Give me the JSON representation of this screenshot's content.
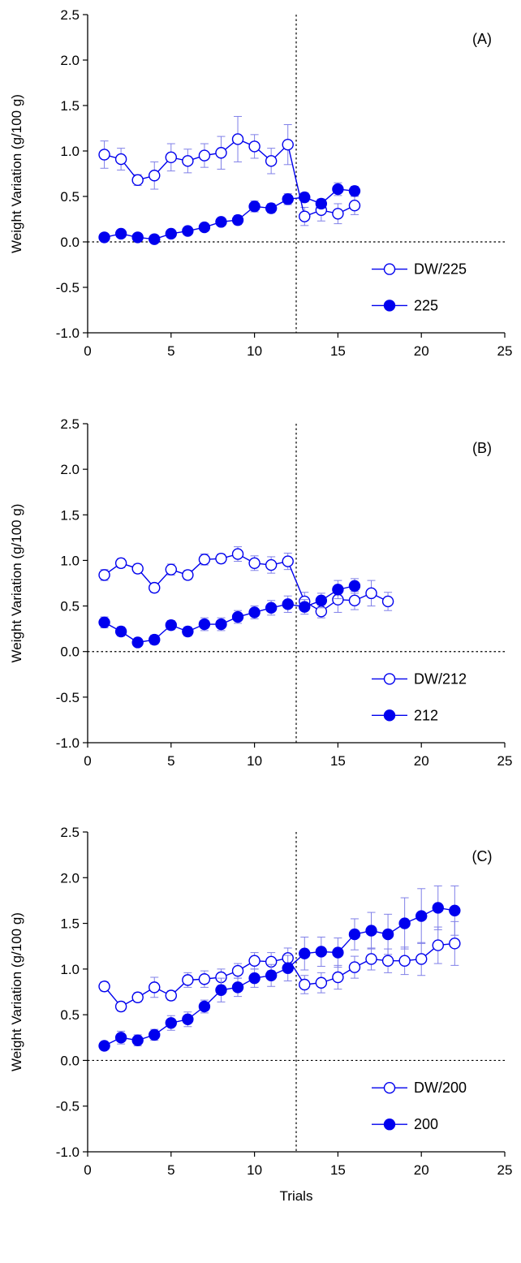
{
  "chart_data": [
    {
      "type": "line",
      "panel_label": "(A)",
      "ylabel": "Weight Variation (g/100 g)",
      "xlabel": "",
      "xlim": [
        0,
        25
      ],
      "ylim": [
        -1.0,
        2.5
      ],
      "xticks": [
        "0",
        "5",
        "10",
        "15",
        "20",
        "25"
      ],
      "yticks": [
        "-1.0",
        "-0.5",
        "0.0",
        "0.5",
        "1.0",
        "1.5",
        "2.0",
        "2.5"
      ],
      "vline_x": 12.5,
      "hline_y": 0,
      "legend_position": "bottom-right",
      "series": [
        {
          "name": "DW/225",
          "marker": "open-circle",
          "x": [
            1,
            2,
            3,
            4,
            5,
            6,
            7,
            8,
            9,
            10,
            11,
            12,
            13,
            14,
            15,
            16
          ],
          "y": [
            0.96,
            0.91,
            0.68,
            0.73,
            0.93,
            0.89,
            0.95,
            0.98,
            1.13,
            1.05,
            0.89,
            1.07,
            0.28,
            0.35,
            0.31,
            0.4
          ],
          "err": [
            0.15,
            0.12,
            0.06,
            0.15,
            0.15,
            0.13,
            0.13,
            0.18,
            0.25,
            0.13,
            0.14,
            0.22,
            0.1,
            0.12,
            0.11,
            0.1
          ]
        },
        {
          "name": "225",
          "marker": "filled-circle",
          "x": [
            1,
            2,
            3,
            4,
            5,
            6,
            7,
            8,
            9,
            10,
            11,
            12,
            13,
            14,
            15,
            16
          ],
          "y": [
            0.05,
            0.09,
            0.05,
            0.03,
            0.09,
            0.12,
            0.16,
            0.22,
            0.24,
            0.39,
            0.37,
            0.47,
            0.49,
            0.42,
            0.58,
            0.56
          ],
          "err": [
            0.03,
            0.03,
            0.03,
            0.03,
            0.04,
            0.04,
            0.04,
            0.04,
            0.05,
            0.06,
            0.05,
            0.06,
            0.05,
            0.05,
            0.07,
            0.05
          ]
        }
      ]
    },
    {
      "type": "line",
      "panel_label": "(B)",
      "ylabel": "Weight Variation (g/100 g)",
      "xlabel": "",
      "xlim": [
        0,
        25
      ],
      "ylim": [
        -1.0,
        2.5
      ],
      "xticks": [
        "0",
        "5",
        "10",
        "15",
        "20",
        "25"
      ],
      "yticks": [
        "-1.0",
        "-0.5",
        "0.0",
        "0.5",
        "1.0",
        "1.5",
        "2.0",
        "2.5"
      ],
      "vline_x": 12.5,
      "hline_y": 0,
      "legend_position": "bottom-right",
      "series": [
        {
          "name": "DW/212",
          "marker": "open-circle",
          "x": [
            1,
            2,
            3,
            4,
            5,
            6,
            7,
            8,
            9,
            10,
            11,
            12,
            13,
            14,
            15,
            16,
            17,
            18
          ],
          "y": [
            0.84,
            0.97,
            0.91,
            0.7,
            0.9,
            0.84,
            1.01,
            1.02,
            1.07,
            0.97,
            0.95,
            0.99,
            0.55,
            0.44,
            0.57,
            0.56,
            0.64,
            0.55
          ],
          "err": [
            0.06,
            0.05,
            0.05,
            0.05,
            0.06,
            0.05,
            0.06,
            0.05,
            0.08,
            0.08,
            0.09,
            0.09,
            0.1,
            0.07,
            0.14,
            0.1,
            0.14,
            0.1
          ]
        },
        {
          "name": "212",
          "marker": "filled-circle",
          "x": [
            1,
            2,
            3,
            4,
            5,
            6,
            7,
            8,
            9,
            10,
            11,
            12,
            13,
            14,
            15,
            16
          ],
          "y": [
            0.32,
            0.22,
            0.1,
            0.13,
            0.29,
            0.22,
            0.3,
            0.3,
            0.38,
            0.43,
            0.48,
            0.52,
            0.49,
            0.56,
            0.68,
            0.72
          ],
          "err": [
            0.06,
            0.05,
            0.04,
            0.05,
            0.05,
            0.05,
            0.07,
            0.07,
            0.07,
            0.07,
            0.08,
            0.09,
            0.08,
            0.08,
            0.1,
            0.08
          ]
        }
      ]
    },
    {
      "type": "line",
      "panel_label": "(C)",
      "ylabel": "Weight Variation (g/100 g)",
      "xlabel": "Trials",
      "xlim": [
        0,
        25
      ],
      "ylim": [
        -1.0,
        2.5
      ],
      "xticks": [
        "0",
        "5",
        "10",
        "15",
        "20",
        "25"
      ],
      "yticks": [
        "-1.0",
        "-0.5",
        "0.0",
        "0.5",
        "1.0",
        "1.5",
        "2.0",
        "2.5"
      ],
      "vline_x": 12.5,
      "hline_y": 0,
      "legend_position": "bottom-right",
      "series": [
        {
          "name": "DW/200",
          "marker": "open-circle",
          "x": [
            1,
            2,
            3,
            4,
            5,
            6,
            7,
            8,
            9,
            10,
            11,
            12,
            13,
            14,
            15,
            16,
            17,
            18,
            19,
            20,
            21,
            22
          ],
          "y": [
            0.81,
            0.59,
            0.69,
            0.8,
            0.71,
            0.88,
            0.89,
            0.91,
            0.98,
            1.09,
            1.08,
            1.12,
            0.83,
            0.85,
            0.91,
            1.02,
            1.11,
            1.09,
            1.09,
            1.11,
            1.26,
            1.28
          ],
          "err": [
            0.05,
            0.05,
            0.05,
            0.11,
            0.05,
            0.08,
            0.09,
            0.09,
            0.08,
            0.09,
            0.1,
            0.11,
            0.1,
            0.11,
            0.13,
            0.12,
            0.12,
            0.13,
            0.15,
            0.18,
            0.2,
            0.24
          ]
        },
        {
          "name": "200",
          "marker": "filled-circle",
          "x": [
            1,
            2,
            3,
            4,
            5,
            6,
            7,
            8,
            9,
            10,
            11,
            12,
            13,
            14,
            15,
            16,
            17,
            18,
            19,
            20,
            21,
            22
          ],
          "y": [
            0.16,
            0.25,
            0.22,
            0.28,
            0.41,
            0.45,
            0.59,
            0.77,
            0.8,
            0.9,
            0.93,
            1.01,
            1.17,
            1.19,
            1.18,
            1.38,
            1.42,
            1.38,
            1.5,
            1.58,
            1.67,
            1.64
          ],
          "err": [
            0.03,
            0.07,
            0.06,
            0.06,
            0.08,
            0.08,
            0.07,
            0.13,
            0.1,
            0.1,
            0.12,
            0.14,
            0.18,
            0.16,
            0.16,
            0.17,
            0.2,
            0.22,
            0.28,
            0.3,
            0.24,
            0.27
          ]
        }
      ]
    }
  ],
  "colors": {
    "series": "#0000ee",
    "errorbar": "#8080e8",
    "axis": "#000000"
  }
}
